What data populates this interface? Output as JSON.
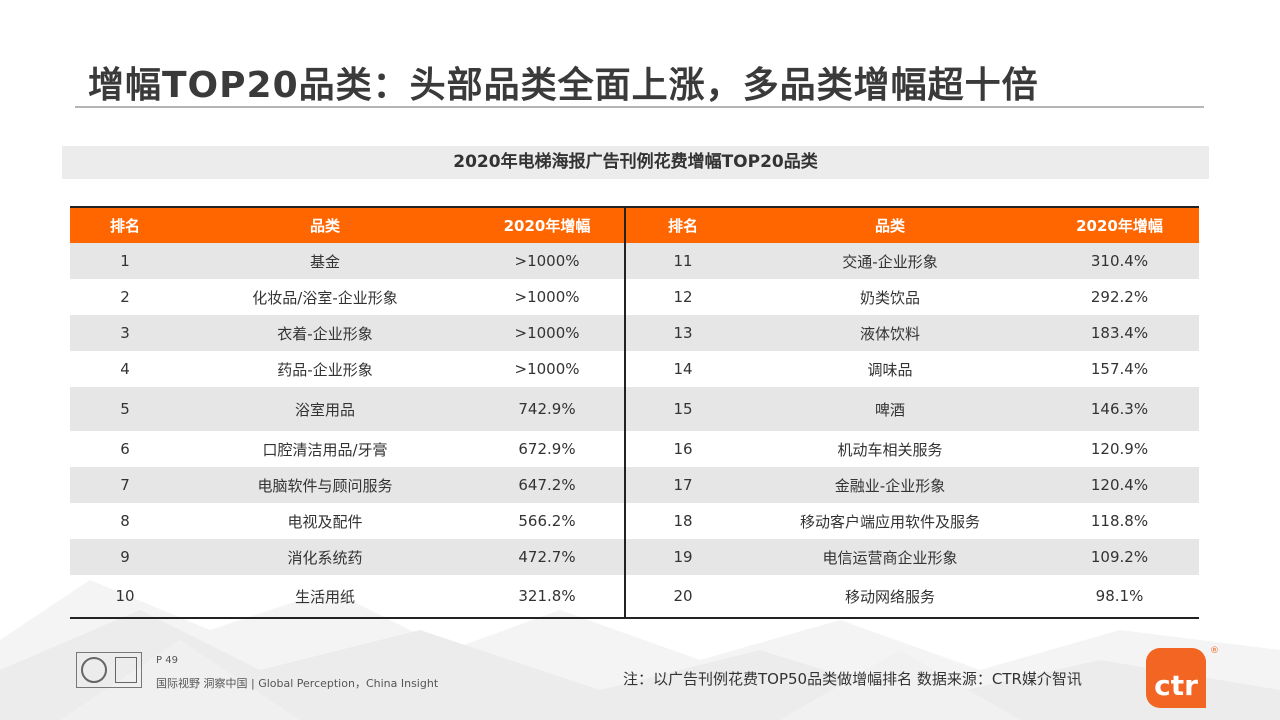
{
  "title": "增幅TOP20品类：头部品类全面上涨，多品类增幅超十倍",
  "table_caption": "2020年电梯海报广告刊例花费增幅TOP20品类",
  "columns": {
    "rank": "排名",
    "category": "品类",
    "growth": "2020年增幅"
  },
  "rows": [
    {
      "left": {
        "rank": "1",
        "category": "基金",
        "growth": ">1000%"
      },
      "right": {
        "rank": "11",
        "category": "交通-企业形象",
        "growth": "310.4%"
      }
    },
    {
      "left": {
        "rank": "2",
        "category": "化妆品/浴室-企业形象",
        "growth": ">1000%"
      },
      "right": {
        "rank": "12",
        "category": "奶类饮品",
        "growth": "292.2%"
      }
    },
    {
      "left": {
        "rank": "3",
        "category": "衣着-企业形象",
        "growth": ">1000%"
      },
      "right": {
        "rank": "13",
        "category": "液体饮料",
        "growth": "183.4%"
      }
    },
    {
      "left": {
        "rank": "4",
        "category": "药品-企业形象",
        "growth": ">1000%"
      },
      "right": {
        "rank": "14",
        "category": "调味品",
        "growth": "157.4%"
      }
    },
    {
      "left": {
        "rank": "5",
        "category": "浴室用品",
        "growth": "742.9%"
      },
      "right": {
        "rank": "15",
        "category": "啤酒",
        "growth": "146.3%"
      }
    },
    {
      "left": {
        "rank": "6",
        "category": "口腔清洁用品/牙膏",
        "growth": "672.9%"
      },
      "right": {
        "rank": "16",
        "category": "机动车相关服务",
        "growth": "120.9%"
      }
    },
    {
      "left": {
        "rank": "7",
        "category": "电脑软件与顾问服务",
        "growth": "647.2%"
      },
      "right": {
        "rank": "17",
        "category": "金融业-企业形象",
        "growth": "120.4%"
      }
    },
    {
      "left": {
        "rank": "8",
        "category": "电视及配件",
        "growth": "566.2%"
      },
      "right": {
        "rank": "18",
        "category": "移动客户端应用软件及服务",
        "growth": "118.8%"
      }
    },
    {
      "left": {
        "rank": "9",
        "category": "消化系统药",
        "growth": "472.7%"
      },
      "right": {
        "rank": "19",
        "category": "电信运营商企业形象",
        "growth": "109.2%"
      }
    },
    {
      "left": {
        "rank": "10",
        "category": "生活用纸",
        "growth": "321.8%"
      },
      "right": {
        "rank": "20",
        "category": "移动网络服务",
        "growth": "98.1%"
      }
    }
  ],
  "footer": {
    "page_number": "P 49",
    "tagline": "国际视野 洞察中国 | Global Perception，China Insight",
    "note": "注：以广告刊例花费TOP50品类做增幅排名   数据来源：CTR媒介智讯",
    "brand": "ctr",
    "brand_reg": "®"
  },
  "colors": {
    "header": "#ff6600",
    "stripe": "#e6e6e6",
    "brand": "#f26522"
  }
}
